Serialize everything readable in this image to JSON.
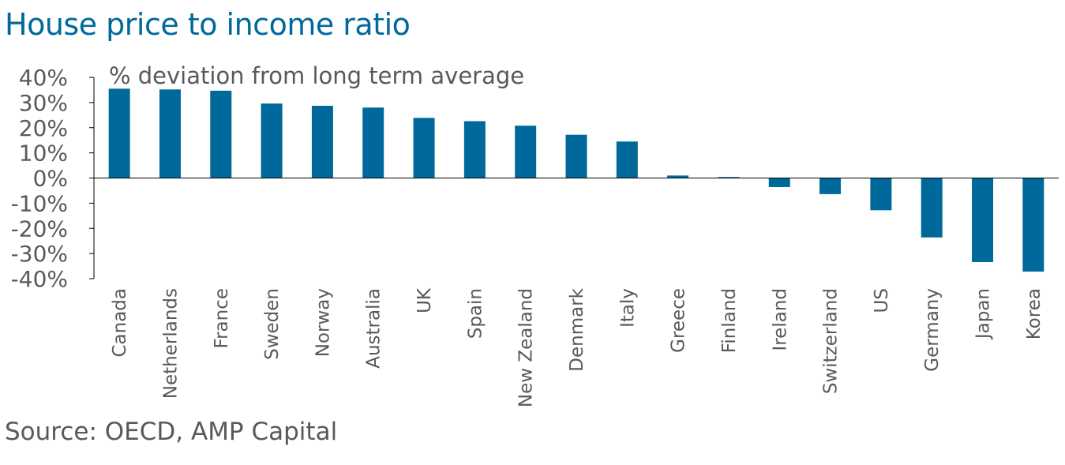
{
  "title": "House price to income ratio",
  "source": "Source: OECD, AMP Capital",
  "colors": {
    "title": "#00699b",
    "bar": "#00699b",
    "text": "#58595b",
    "axis": "#000000"
  },
  "chart_data": {
    "type": "bar",
    "title": "House price to income ratio",
    "subtitle": "% deviation from long term average",
    "xlabel": "",
    "ylabel": "",
    "ylim": [
      -40,
      40
    ],
    "yticks": [
      40,
      30,
      20,
      10,
      0,
      -10,
      -20,
      -30,
      -40
    ],
    "ytick_labels": [
      "40%",
      "30%",
      "20%",
      "10%",
      "0%",
      "-10%",
      "-20%",
      "-30%",
      "-40%"
    ],
    "grid": false,
    "categories": [
      "Canada",
      "Netherlands",
      "France",
      "Sweden",
      "Norway",
      "Australia",
      "UK",
      "Spain",
      "New Zealand",
      "Denmark",
      "Italy",
      "Greece",
      "Finland",
      "Ireland",
      "Switzerland",
      "US",
      "Germany",
      "Japan",
      "Korea"
    ],
    "values": [
      35.5,
      35.2,
      34.7,
      29.6,
      28.7,
      28.0,
      23.9,
      22.6,
      20.8,
      17.2,
      14.5,
      1.0,
      0.4,
      -3.6,
      -6.4,
      -12.8,
      -23.6,
      -33.4,
      -37.2
    ]
  }
}
